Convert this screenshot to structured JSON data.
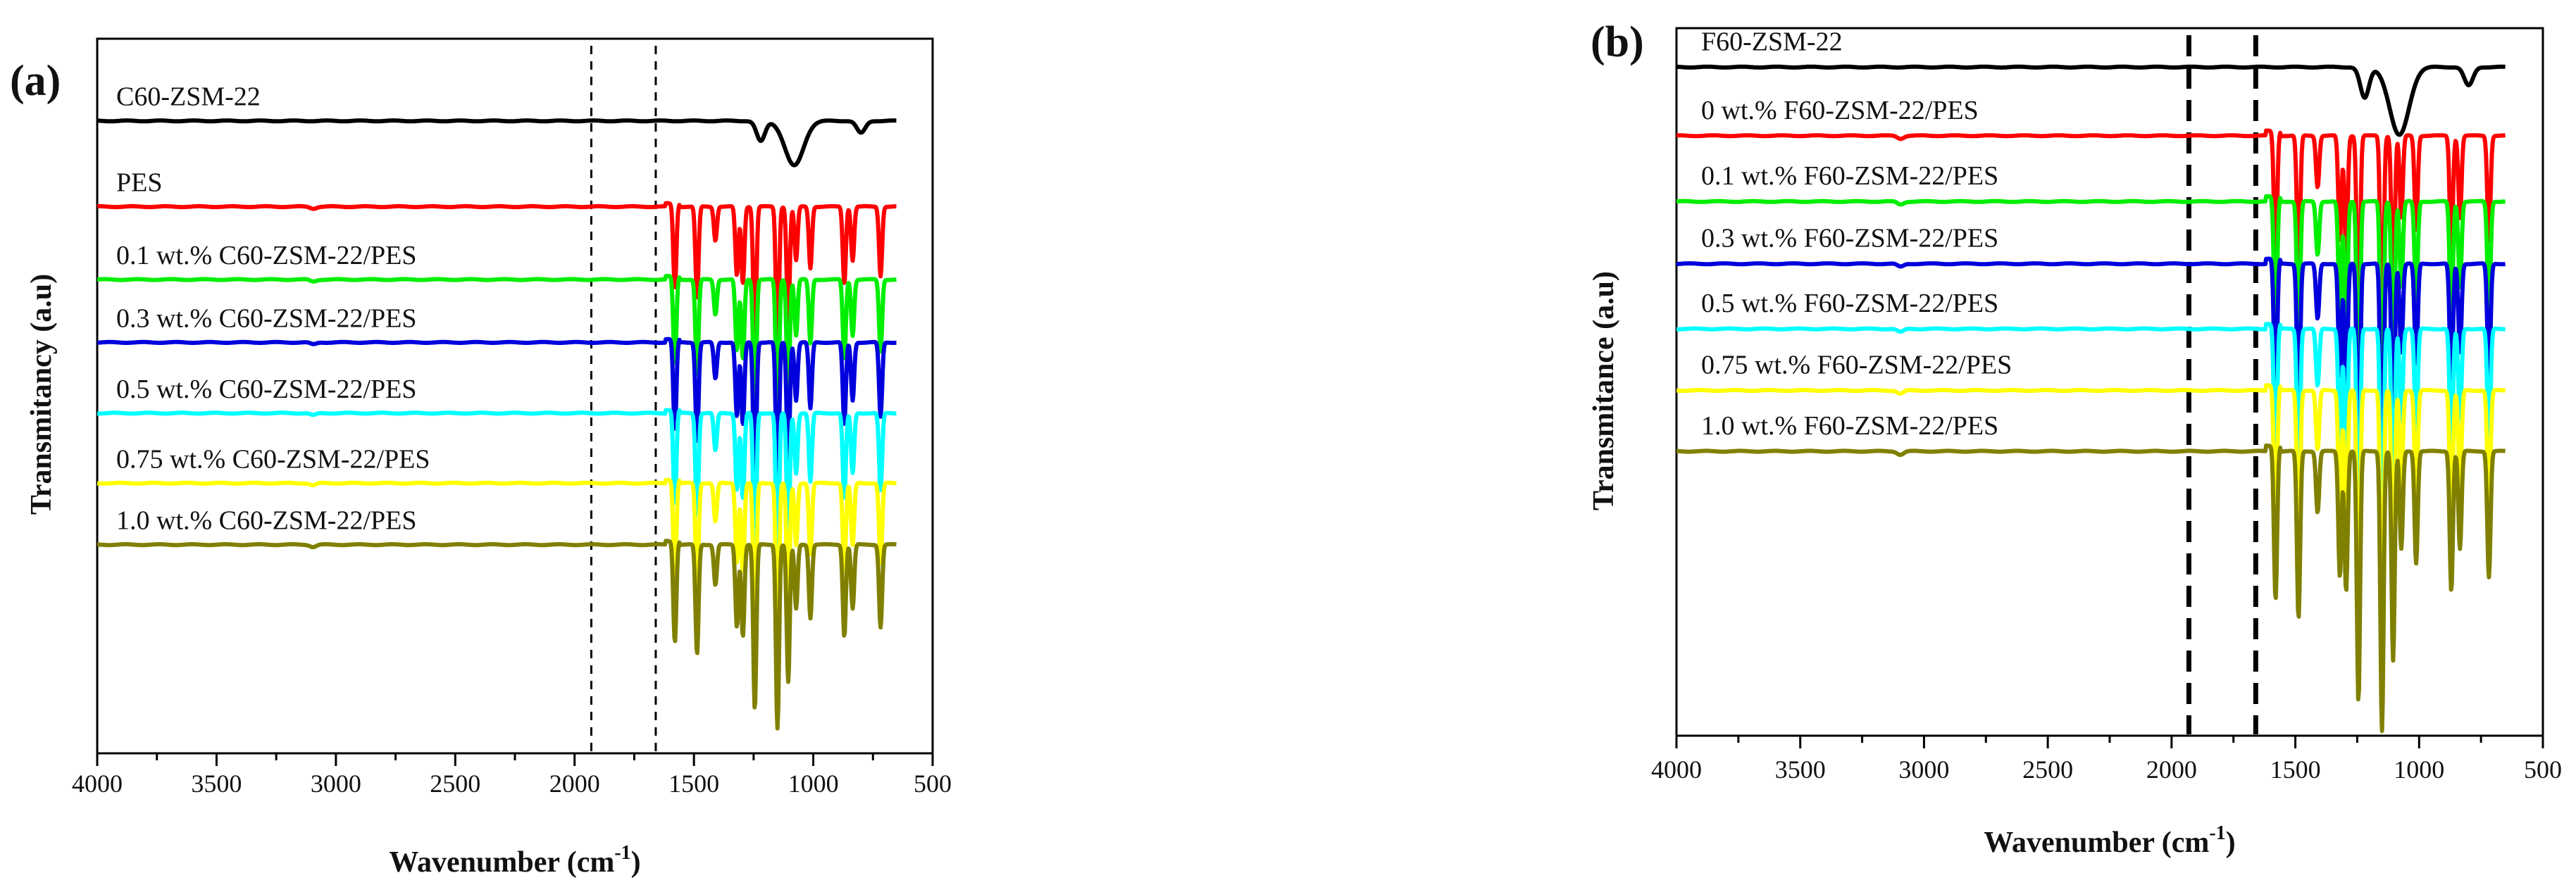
{
  "figure": {
    "x_ticks": [
      "4000",
      "3500",
      "3000",
      "2500",
      "2000",
      "1500",
      "1000",
      "500"
    ]
  },
  "chart_data": [
    {
      "type": "line",
      "panel": "(a)",
      "xlabel_main": "Wavenumber (cm",
      "xlabel_sup": "-1",
      "xlabel_end": ")",
      "ylabel": "Transmitancy (a.u)",
      "xlim": [
        4000,
        500
      ],
      "x_reversed": true,
      "dashed_reference_lines": [
        1930,
        1660
      ],
      "series": [
        {
          "name": "C60-ZSM-22",
          "color": "#000000",
          "baseline": 0.115
        },
        {
          "name": "PES",
          "color": "#ff0000",
          "baseline": 0.235
        },
        {
          "name": "0.1 wt.% C60-ZSM-22/PES",
          "color": "#00ee00",
          "baseline": 0.337
        },
        {
          "name": "0.3 wt.% C60-ZSM-22/PES",
          "color": "#0000dd",
          "baseline": 0.425
        },
        {
          "name": "0.5 wt.% C60-ZSM-22/PES",
          "color": "#00ffff",
          "baseline": 0.524
        },
        {
          "name": "0.75 wt.% C60-ZSM-22/PES",
          "color": "#ffff00",
          "baseline": 0.622
        },
        {
          "name": "1.0 wt.% C60-ZSM-22/PES",
          "color": "#808000",
          "baseline": 0.708
        }
      ]
    },
    {
      "type": "line",
      "panel": "(b)",
      "xlabel_main": "Wavenumber (cm",
      "xlabel_sup": "-1",
      "xlabel_end": ")",
      "ylabel": "Transmitance (a.u)",
      "xlim": [
        4000,
        500
      ],
      "x_reversed": true,
      "dashed_reference_lines": [
        1930,
        1660
      ],
      "series": [
        {
          "name": "F60-ZSM-22",
          "color": "#000000",
          "baseline": 0.055
        },
        {
          "name": "0 wt.% F60-ZSM-22/PES",
          "color": "#ff0000",
          "baseline": 0.152
        },
        {
          "name": "0.1 wt.% F60-ZSM-22/PES",
          "color": "#00ee00",
          "baseline": 0.245
        },
        {
          "name": "0.3 wt.% F60-ZSM-22/PES",
          "color": "#0000dd",
          "baseline": 0.333
        },
        {
          "name": "0.5 wt.% F60-ZSM-22/PES",
          "color": "#00ffff",
          "baseline": 0.425
        },
        {
          "name": "0.75 wt.% F60-ZSM-22/PES",
          "color": "#ffff00",
          "baseline": 0.512
        },
        {
          "name": "1.0 wt.% F60-ZSM-22/PES",
          "color": "#808000",
          "baseline": 0.598
        }
      ]
    }
  ]
}
